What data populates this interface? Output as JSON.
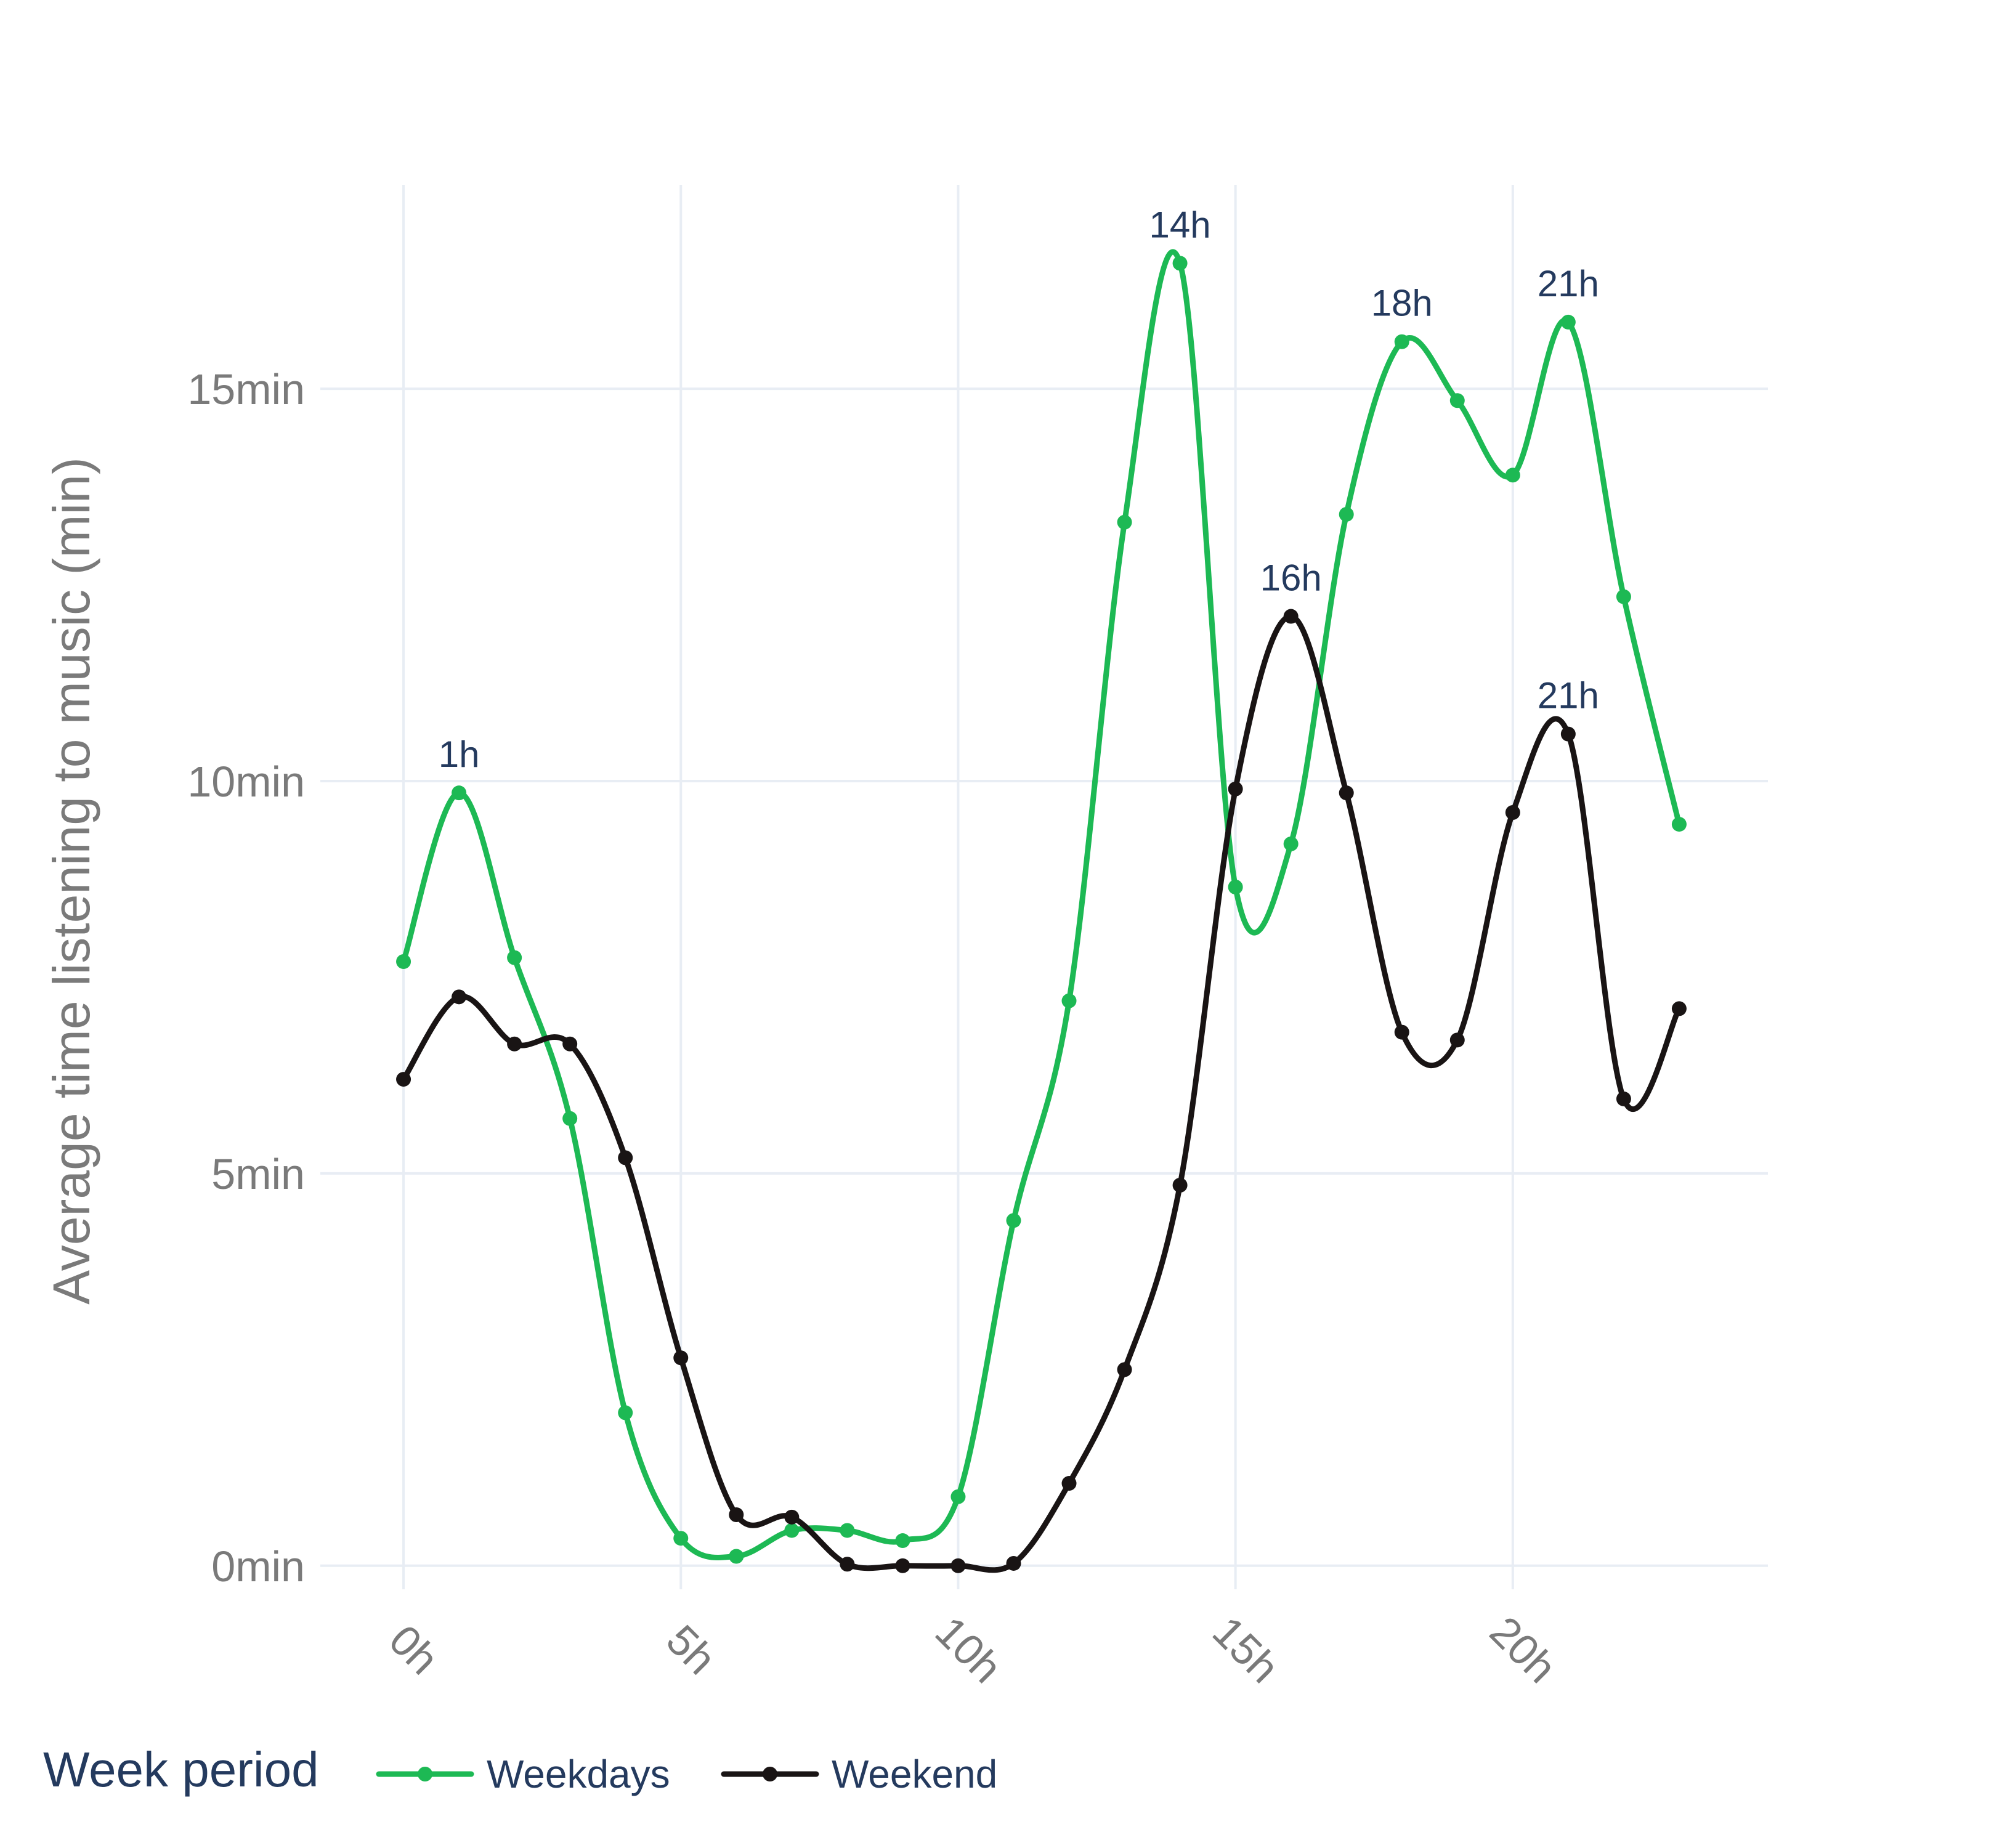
{
  "chart_data": {
    "type": "line",
    "ylabel": "Average time listening to music (min)",
    "x_ticks": [
      "0h",
      "5h",
      "10h",
      "15h",
      "20h"
    ],
    "x_tick_values": [
      0,
      5,
      10,
      15,
      20
    ],
    "y_ticks": [
      "0min",
      "5min",
      "10min",
      "15min"
    ],
    "y_tick_values": [
      0,
      5,
      10,
      15
    ],
    "xlim": [
      -1.5,
      24.6
    ],
    "ylim": [
      -0.3,
      17.6
    ],
    "grid": true,
    "legend": {
      "title": "Week period",
      "placement": "bottom-left",
      "orientation": "horizontal"
    },
    "x": [
      0,
      1,
      2,
      3,
      4,
      5,
      6,
      7,
      8,
      9,
      10,
      11,
      12,
      13,
      14,
      15,
      16,
      17,
      18,
      19,
      20,
      21,
      22,
      23
    ],
    "series": [
      {
        "name": "Weekdays",
        "color": "#1db954",
        "values": [
          7.7,
          9.85,
          7.75,
          5.7,
          1.95,
          0.35,
          0.12,
          0.45,
          0.45,
          0.32,
          0.88,
          4.4,
          7.2,
          13.3,
          16.6,
          8.65,
          9.2,
          13.4,
          15.6,
          14.85,
          13.9,
          15.85,
          12.35,
          9.45
        ],
        "annotations": [
          {
            "x": 1,
            "y": 9.85,
            "text": "1h"
          },
          {
            "x": 14,
            "y": 16.6,
            "text": "14h"
          },
          {
            "x": 18,
            "y": 15.6,
            "text": "18h"
          },
          {
            "x": 21,
            "y": 15.85,
            "text": "21h"
          }
        ]
      },
      {
        "name": "Weekend",
        "color": "#191414",
        "values": [
          6.2,
          7.25,
          6.65,
          6.65,
          5.2,
          2.65,
          0.65,
          0.62,
          0.02,
          0.0,
          0.0,
          0.03,
          1.05,
          2.5,
          4.85,
          9.9,
          12.1,
          9.85,
          6.8,
          6.7,
          9.6,
          10.6,
          5.95,
          7.1
        ],
        "annotations": [
          {
            "x": 16,
            "y": 12.1,
            "text": "16h"
          },
          {
            "x": 21,
            "y": 10.6,
            "text": "21h"
          }
        ]
      }
    ]
  }
}
